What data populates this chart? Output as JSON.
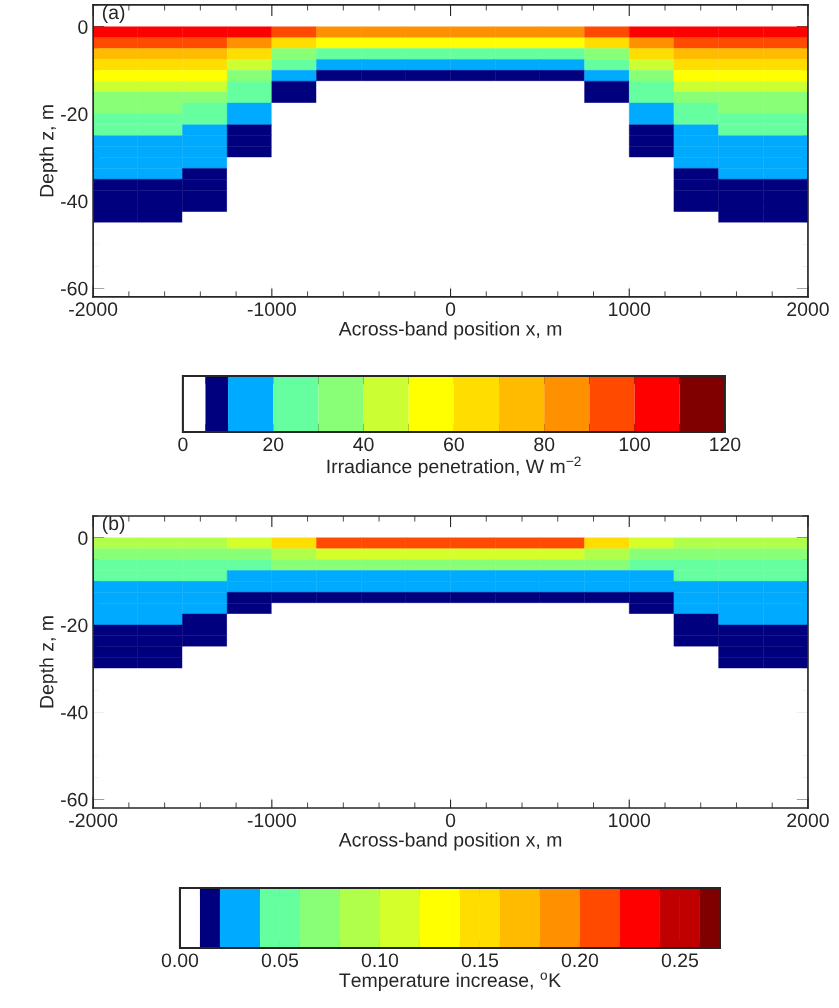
{
  "chart_data": [
    {
      "type": "heatmap",
      "xlabel": "Across-band position x, m",
      "ylabel": "Depth z, m",
      "clabel": "Irradiance penetration, W m$^{−2}$",
      "annotations": [
        "(a)"
      ],
      "x": [
        -1875,
        -1625,
        -1375,
        -1125,
        -875,
        -625,
        -375,
        -125,
        125,
        375,
        625,
        875,
        1125,
        1375,
        1625,
        1875
      ],
      "y": [
        -1.25,
        -3.75,
        -6.25,
        -8.75,
        -11.25,
        -13.75,
        -16.25,
        -18.75,
        -21.25,
        -23.75,
        -26.25,
        -28.75,
        -31.25,
        -33.75,
        -36.25,
        -38.75,
        -41.25,
        -43.75,
        -46.25,
        -48.75,
        -51.25,
        -53.75,
        -56.25,
        -58.75
      ],
      "cells": [
        [
          105,
          105,
          105,
          105,
          95,
          85,
          85,
          85,
          85,
          85,
          85,
          95,
          105,
          105,
          105,
          105
        ],
        [
          95,
          95,
          95,
          85,
          65,
          55,
          55,
          55,
          55,
          55,
          55,
          65,
          85,
          95,
          95,
          95
        ],
        [
          75,
          75,
          75,
          65,
          35,
          25,
          25,
          25,
          25,
          25,
          25,
          35,
          65,
          75,
          75,
          75
        ],
        [
          65,
          65,
          65,
          45,
          25,
          15,
          15,
          15,
          15,
          15,
          15,
          25,
          45,
          65,
          65,
          65
        ],
        [
          55,
          55,
          55,
          35,
          15,
          7,
          7,
          7,
          7,
          7,
          7,
          15,
          35,
          55,
          55,
          55
        ],
        [
          45,
          45,
          45,
          25,
          7,
          2,
          2,
          2,
          2,
          2,
          2,
          7,
          25,
          45,
          45,
          45
        ],
        [
          35,
          35,
          35,
          25,
          7,
          2,
          2,
          2,
          2,
          2,
          2,
          7,
          25,
          35,
          35,
          35
        ],
        [
          35,
          35,
          25,
          15,
          2,
          2,
          2,
          2,
          2,
          2,
          2,
          2,
          15,
          25,
          35,
          35
        ],
        [
          25,
          25,
          25,
          15,
          2,
          2,
          2,
          2,
          2,
          2,
          2,
          2,
          15,
          25,
          25,
          25
        ],
        [
          25,
          25,
          15,
          7,
          2,
          2,
          2,
          2,
          2,
          2,
          2,
          2,
          7,
          15,
          25,
          25
        ],
        [
          15,
          15,
          15,
          7,
          2,
          2,
          2,
          2,
          2,
          2,
          2,
          2,
          7,
          15,
          15,
          15
        ],
        [
          15,
          15,
          15,
          7,
          2,
          2,
          2,
          2,
          2,
          2,
          2,
          2,
          7,
          15,
          15,
          15
        ],
        [
          15,
          15,
          15,
          2,
          2,
          2,
          2,
          2,
          2,
          2,
          2,
          2,
          2,
          15,
          15,
          15
        ],
        [
          15,
          15,
          7,
          2,
          2,
          2,
          2,
          2,
          2,
          2,
          2,
          2,
          2,
          7,
          15,
          15
        ],
        [
          7,
          7,
          7,
          2,
          2,
          2,
          2,
          2,
          2,
          2,
          2,
          2,
          2,
          7,
          7,
          7
        ],
        [
          7,
          7,
          7,
          2,
          2,
          2,
          2,
          2,
          2,
          2,
          2,
          2,
          2,
          7,
          7,
          7
        ],
        [
          7,
          7,
          7,
          2,
          2,
          2,
          2,
          2,
          2,
          2,
          2,
          2,
          2,
          7,
          7,
          7
        ],
        [
          7,
          7,
          2,
          2,
          2,
          2,
          2,
          2,
          2,
          2,
          2,
          2,
          2,
          2,
          7,
          7
        ],
        [
          2,
          2,
          2,
          2,
          2,
          2,
          2,
          2,
          2,
          2,
          2,
          2,
          2,
          2,
          2,
          2
        ],
        [
          2,
          2,
          2,
          2,
          2,
          2,
          2,
          2,
          2,
          2,
          2,
          2,
          2,
          2,
          2,
          2
        ],
        [
          2,
          2,
          2,
          2,
          2,
          2,
          2,
          2,
          2,
          2,
          2,
          2,
          2,
          2,
          2,
          2
        ],
        [
          2,
          2,
          2,
          2,
          2,
          2,
          2,
          2,
          2,
          2,
          2,
          2,
          2,
          2,
          2,
          2
        ],
        [
          2,
          2,
          2,
          2,
          2,
          2,
          2,
          2,
          2,
          2,
          2,
          2,
          2,
          2,
          2,
          2
        ],
        [
          2,
          2,
          2,
          2,
          2,
          2,
          2,
          2,
          2,
          2,
          2,
          2,
          2,
          2,
          2,
          2
        ]
      ],
      "colors": [
        "#ffffff",
        "#00007f",
        "#00aaff",
        "#66ffa0",
        "#88ff77",
        "#ccff33",
        "#ffff00",
        "#ffdd00",
        "#ffbb00",
        "#ff9000",
        "#ff4a00",
        "#ff0000",
        "#800000"
      ],
      "clim": [
        0,
        120
      ],
      "cticks": [
        0,
        {
          "value": 5,
          "label": null
        },
        {
          "value": 10,
          "label": null
        },
        20,
        {
          "value": 30,
          "label": null
        },
        40,
        {
          "value": 50,
          "label": null
        },
        60,
        {
          "value": 70,
          "label": null
        },
        80,
        {
          "value": 90,
          "label": null
        },
        100,
        {
          "value": 110,
          "label": null
        },
        120
      ],
      "xlim": [
        -2000,
        2000
      ],
      "xticks": [
        -2000,
        -1000,
        0,
        1000,
        2000
      ],
      "ylim": [
        -62,
        5
      ],
      "yticks": [
        -60,
        -40,
        -20,
        0
      ]
    },
    {
      "type": "heatmap",
      "xlabel": "Across-band position x, m",
      "ylabel": "Depth z, m",
      "clabel": "Temperature increase, $^{o}$K",
      "annotations": [
        "(b)"
      ],
      "x": [
        -1875,
        -1625,
        -1375,
        -1125,
        -875,
        -625,
        -375,
        -125,
        125,
        375,
        625,
        875,
        1125,
        1375,
        1625,
        1875
      ],
      "y": [
        -1.25,
        -3.75,
        -6.25,
        -8.75,
        -11.25,
        -13.75,
        -16.25,
        -18.75,
        -21.25,
        -23.75,
        -26.25,
        -28.75,
        -31.25,
        -33.75,
        -36.25,
        -38.75,
        -41.25,
        -43.75,
        -46.25,
        -48.75,
        -51.25,
        -53.75,
        -56.25,
        -58.75
      ],
      "cells": [
        [
          0.09,
          0.09,
          0.09,
          0.11,
          0.15,
          0.21,
          0.21,
          0.21,
          0.21,
          0.21,
          0.21,
          0.15,
          0.11,
          0.09,
          0.09,
          0.09
        ],
        [
          0.07,
          0.07,
          0.07,
          0.07,
          0.09,
          0.11,
          0.11,
          0.11,
          0.11,
          0.11,
          0.11,
          0.09,
          0.07,
          0.07,
          0.07,
          0.07
        ],
        [
          0.05,
          0.05,
          0.05,
          0.05,
          0.07,
          0.07,
          0.07,
          0.07,
          0.07,
          0.07,
          0.07,
          0.07,
          0.05,
          0.05,
          0.05,
          0.05
        ],
        [
          0.05,
          0.05,
          0.05,
          0.03,
          0.03,
          0.03,
          0.03,
          0.03,
          0.03,
          0.03,
          0.03,
          0.03,
          0.03,
          0.05,
          0.05,
          0.05
        ],
        [
          0.03,
          0.03,
          0.03,
          0.03,
          0.03,
          0.03,
          0.03,
          0.03,
          0.03,
          0.03,
          0.03,
          0.03,
          0.03,
          0.03,
          0.03,
          0.03
        ],
        [
          0.03,
          0.03,
          0.03,
          0.015,
          0.015,
          0.015,
          0.015,
          0.015,
          0.015,
          0.015,
          0.015,
          0.015,
          0.015,
          0.03,
          0.03,
          0.03
        ],
        [
          0.03,
          0.03,
          0.03,
          0.015,
          0.005,
          0.005,
          0.005,
          0.005,
          0.005,
          0.005,
          0.005,
          0.005,
          0.015,
          0.03,
          0.03,
          0.03
        ],
        [
          0.03,
          0.03,
          0.015,
          0.005,
          0.005,
          0.005,
          0.005,
          0.005,
          0.005,
          0.005,
          0.005,
          0.005,
          0.005,
          0.015,
          0.03,
          0.03
        ],
        [
          0.015,
          0.015,
          0.015,
          0.005,
          0.005,
          0.005,
          0.005,
          0.005,
          0.005,
          0.005,
          0.005,
          0.005,
          0.005,
          0.015,
          0.015,
          0.015
        ],
        [
          0.015,
          0.015,
          0.015,
          0.005,
          0.005,
          0.005,
          0.005,
          0.005,
          0.005,
          0.005,
          0.005,
          0.005,
          0.005,
          0.015,
          0.015,
          0.015
        ],
        [
          0.015,
          0.015,
          0.005,
          0.005,
          0.005,
          0.005,
          0.005,
          0.005,
          0.005,
          0.005,
          0.005,
          0.005,
          0.005,
          0.005,
          0.015,
          0.015
        ],
        [
          0.015,
          0.015,
          0.005,
          0.005,
          0.005,
          0.005,
          0.005,
          0.005,
          0.005,
          0.005,
          0.005,
          0.005,
          0.005,
          0.005,
          0.015,
          0.015
        ],
        [
          0.005,
          0.005,
          0.005,
          0.005,
          0.005,
          0.005,
          0.005,
          0.005,
          0.005,
          0.005,
          0.005,
          0.005,
          0.005,
          0.005,
          0.005,
          0.005
        ],
        [
          0.005,
          0.005,
          0.005,
          0.005,
          0.005,
          0.005,
          0.005,
          0.005,
          0.005,
          0.005,
          0.005,
          0.005,
          0.005,
          0.005,
          0.005,
          0.005
        ],
        [
          0.005,
          0.005,
          0.005,
          0.005,
          0.005,
          0.005,
          0.005,
          0.005,
          0.005,
          0.005,
          0.005,
          0.005,
          0.005,
          0.005,
          0.005,
          0.005
        ],
        [
          0.005,
          0.005,
          0.005,
          0.005,
          0.005,
          0.005,
          0.005,
          0.005,
          0.005,
          0.005,
          0.005,
          0.005,
          0.005,
          0.005,
          0.005,
          0.005
        ],
        [
          0.005,
          0.005,
          0.005,
          0.005,
          0.005,
          0.005,
          0.005,
          0.005,
          0.005,
          0.005,
          0.005,
          0.005,
          0.005,
          0.005,
          0.005,
          0.005
        ],
        [
          0.005,
          0.005,
          0.005,
          0.005,
          0.005,
          0.005,
          0.005,
          0.005,
          0.005,
          0.005,
          0.005,
          0.005,
          0.005,
          0.005,
          0.005,
          0.005
        ],
        [
          0.005,
          0.005,
          0.005,
          0.005,
          0.005,
          0.005,
          0.005,
          0.005,
          0.005,
          0.005,
          0.005,
          0.005,
          0.005,
          0.005,
          0.005,
          0.005
        ],
        [
          0.005,
          0.005,
          0.005,
          0.005,
          0.005,
          0.005,
          0.005,
          0.005,
          0.005,
          0.005,
          0.005,
          0.005,
          0.005,
          0.005,
          0.005,
          0.005
        ],
        [
          0.005,
          0.005,
          0.005,
          0.005,
          0.005,
          0.005,
          0.005,
          0.005,
          0.005,
          0.005,
          0.005,
          0.005,
          0.005,
          0.005,
          0.005,
          0.005
        ],
        [
          0.005,
          0.005,
          0.005,
          0.005,
          0.005,
          0.005,
          0.005,
          0.005,
          0.005,
          0.005,
          0.005,
          0.005,
          0.005,
          0.005,
          0.005,
          0.005
        ],
        [
          0.005,
          0.005,
          0.005,
          0.005,
          0.005,
          0.005,
          0.005,
          0.005,
          0.005,
          0.005,
          0.005,
          0.005,
          0.005,
          0.005,
          0.005,
          0.005
        ],
        [
          0.005,
          0.005,
          0.005,
          0.005,
          0.005,
          0.005,
          0.005,
          0.005,
          0.005,
          0.005,
          0.005,
          0.005,
          0.005,
          0.005,
          0.005,
          0.005
        ]
      ],
      "colors": [
        "#ffffff",
        "#00007f",
        "#00aaff",
        "#66ffa0",
        "#66ffa0",
        "#88ff77",
        "#b0ff4a",
        "#d4ff2a",
        "#ffff00",
        "#ffdd00",
        "#ffdd00",
        "#ffbb00",
        "#ff9000",
        "#ff4a00",
        "#ff0000",
        "#c00000",
        "#c00000",
        "#800000"
      ],
      "clim": [
        0,
        0.27
      ],
      "cticks": [
        {
          "value": 0,
          "label": "0.00"
        },
        {
          "value": 0.01,
          "label": null
        },
        {
          "value": 0.02,
          "label": null
        },
        {
          "value": 0.04,
          "label": null
        },
        {
          "value": 0.05,
          "label": "0.05"
        },
        {
          "value": 0.06,
          "label": null
        },
        {
          "value": 0.08,
          "label": null
        },
        {
          "value": 0.1,
          "label": "0.10"
        },
        {
          "value": 0.12,
          "label": null
        },
        {
          "value": 0.14,
          "label": null
        },
        {
          "value": 0.15,
          "label": "0.15"
        },
        {
          "value": 0.16,
          "label": null
        },
        {
          "value": 0.18,
          "label": null
        },
        {
          "value": 0.2,
          "label": "0.20"
        },
        {
          "value": 0.22,
          "label": null
        },
        {
          "value": 0.24,
          "label": null
        },
        {
          "value": 0.25,
          "label": "0.25"
        },
        {
          "value": 0.26,
          "label": null
        },
        {
          "value": 0.27,
          "label": null
        }
      ],
      "xlim": [
        -2000,
        2000
      ],
      "xticks": [
        -2000,
        -1000,
        0,
        1000,
        2000
      ],
      "ylim": [
        -62,
        5
      ],
      "yticks": [
        -60,
        -40,
        -20,
        0
      ]
    }
  ]
}
